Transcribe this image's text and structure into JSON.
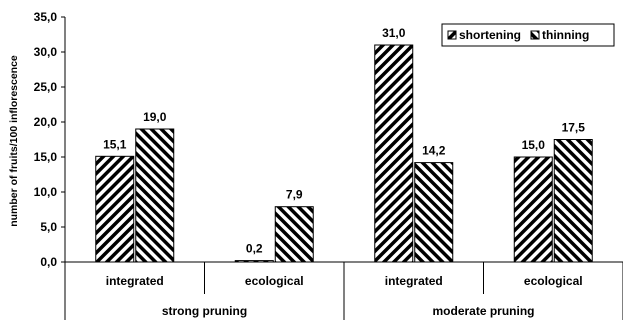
{
  "chart_data": {
    "type": "bar",
    "title": "",
    "ylabel": "number of fruits/100 inflorescence",
    "xlabel": "",
    "ylim": [
      0,
      35
    ],
    "yticks": [
      "0,0",
      "5,0",
      "10,0",
      "15,0",
      "20,0",
      "25,0",
      "30,0",
      "35,0"
    ],
    "yticks_values": [
      0,
      5,
      10,
      15,
      20,
      25,
      30,
      35
    ],
    "groups": [
      {
        "label": "strong pruning",
        "categories": [
          "integrated",
          "ecological"
        ]
      },
      {
        "label": "moderate pruning",
        "categories": [
          "integrated",
          "ecological"
        ]
      }
    ],
    "categories": [
      "integrated",
      "ecological",
      "integrated",
      "ecological"
    ],
    "series": [
      {
        "name": "shortening",
        "values": [
          15.1,
          0.2,
          31.0,
          15.0
        ],
        "labels": [
          "15,1",
          "0,2",
          "31,0",
          "15,0"
        ],
        "pattern": "diag-left"
      },
      {
        "name": "thinning",
        "values": [
          19.0,
          7.9,
          14.2,
          17.5
        ],
        "labels": [
          "19,0",
          "7,9",
          "14,2",
          "17,5"
        ],
        "pattern": "diag-right"
      }
    ],
    "legend_position": "top-right",
    "grid": false,
    "colors": {
      "ink": "#000000",
      "background": "#ffffff"
    }
  }
}
